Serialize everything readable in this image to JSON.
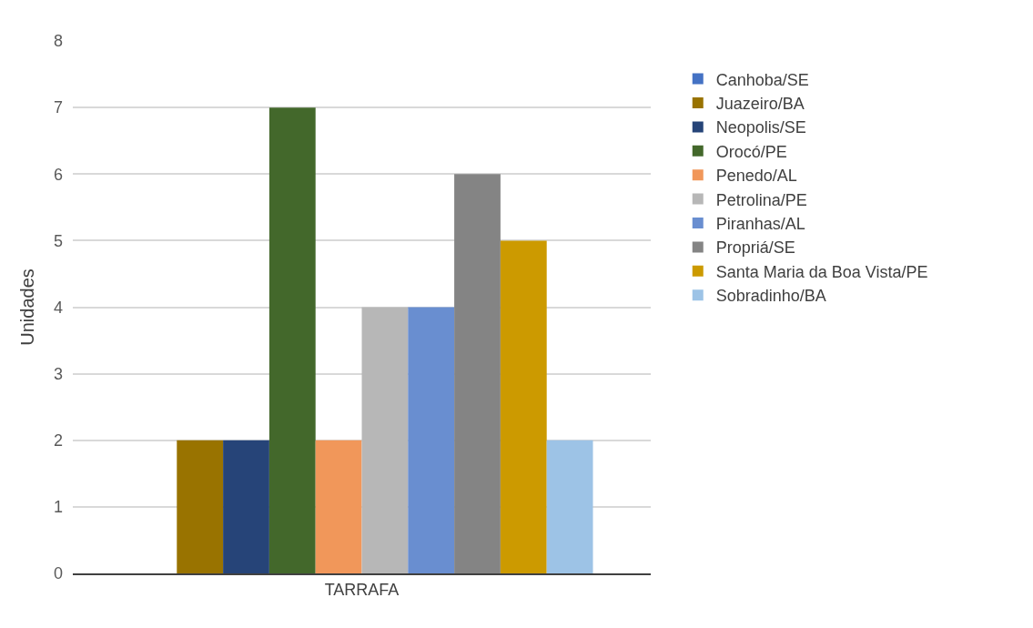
{
  "chart_data": {
    "type": "bar",
    "ylabel": "Unidades",
    "categories": [
      "TARRAFA"
    ],
    "series": [
      {
        "name": "Canhoba/SE",
        "color": "#4472c4",
        "values": [
          0
        ]
      },
      {
        "name": "Juazeiro/BA",
        "color": "#997300",
        "values": [
          2
        ]
      },
      {
        "name": "Neopolis/SE",
        "color": "#264478",
        "values": [
          2
        ]
      },
      {
        "name": "Orocó/PE",
        "color": "#43682b",
        "values": [
          7
        ]
      },
      {
        "name": "Penedo/AL",
        "color": "#f1975a",
        "values": [
          2
        ]
      },
      {
        "name": "Petrolina/PE",
        "color": "#b7b7b7",
        "values": [
          4
        ]
      },
      {
        "name": "Piranhas/AL",
        "color": "#698ed0",
        "values": [
          4
        ]
      },
      {
        "name": "Propriá/SE",
        "color": "#848484",
        "values": [
          6
        ]
      },
      {
        "name": "Santa Maria da Boa Vista/PE",
        "color": "#cc9a00",
        "values": [
          5
        ]
      },
      {
        "name": "Sobradinho/BA",
        "color": "#9dc3e6",
        "values": [
          2
        ]
      }
    ],
    "ylim": [
      0,
      8
    ],
    "yticks": [
      0,
      1,
      2,
      3,
      4,
      5,
      6,
      7,
      8
    ],
    "grid": "y",
    "legend": "right"
  }
}
